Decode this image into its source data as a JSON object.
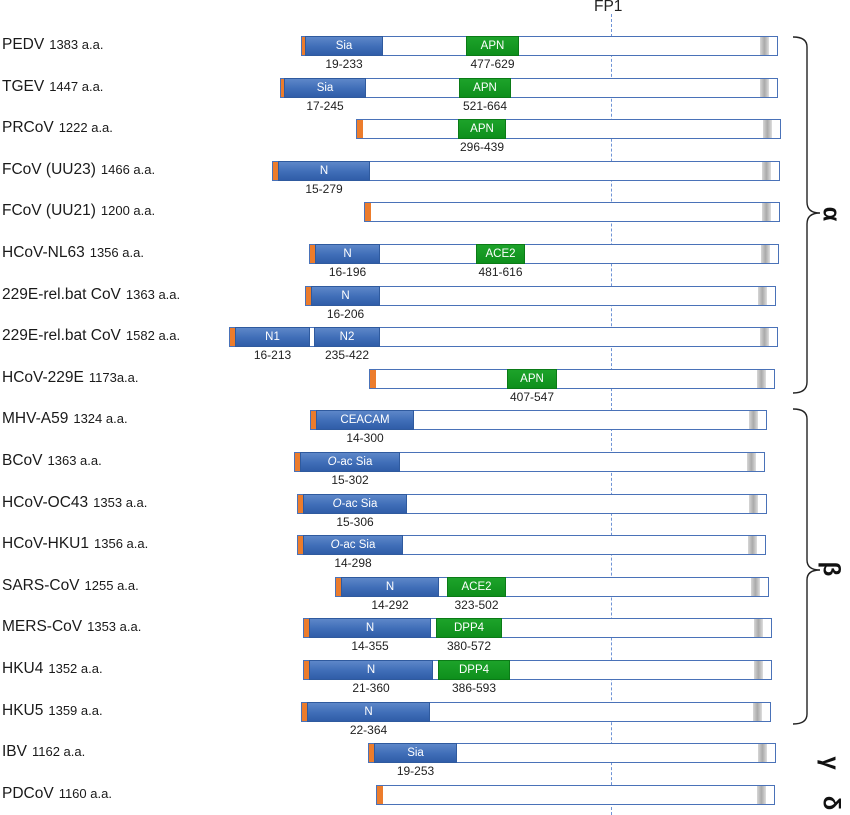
{
  "fp1_label": "FP1",
  "colors": {
    "bar_border": "#4a72b8",
    "signal_peptide": "#ec7c2c",
    "domain_blue": "#3f6db7",
    "domain_green": "#0e8f1c",
    "fp_line": "#6f93d6"
  },
  "groups": [
    {
      "symbol": "α"
    },
    {
      "symbol": "β"
    },
    {
      "symbol": "γ"
    },
    {
      "symbol": "δ"
    }
  ],
  "proteins": [
    {
      "name": "PEDV",
      "length": "1383 a.a.",
      "domains": [
        {
          "label": "Sia",
          "range": "19-233",
          "color": "blue"
        },
        {
          "label": "APN",
          "range": "477-629",
          "color": "green"
        }
      ]
    },
    {
      "name": "TGEV",
      "length": "1447 a.a.",
      "domains": [
        {
          "label": "Sia",
          "range": "17-245",
          "color": "blue"
        },
        {
          "label": "APN",
          "range": "521-664",
          "color": "green"
        }
      ]
    },
    {
      "name": "PRCoV",
      "length": "1222 a.a.",
      "domains": [
        {
          "label": "APN",
          "range": "296-439",
          "color": "green"
        }
      ]
    },
    {
      "name": "FCoV (UU23)",
      "length": "1466 a.a.",
      "domains": [
        {
          "label": "N",
          "range": "15-279",
          "color": "blue"
        }
      ]
    },
    {
      "name": "FCoV (UU21)",
      "length": "1200 a.a.",
      "domains": []
    },
    {
      "name": "HCoV-NL63",
      "length": "1356 a.a.",
      "domains": [
        {
          "label": "N",
          "range": "16-196",
          "color": "blue"
        },
        {
          "label": "ACE2",
          "range": "481-616",
          "color": "green"
        }
      ]
    },
    {
      "name": "229E-rel.bat CoV",
      "length": "1363 a.a.",
      "domains": [
        {
          "label": "N",
          "range": "16-206",
          "color": "blue"
        }
      ]
    },
    {
      "name": "229E-rel.bat CoV",
      "length": "1582 a.a.",
      "domains": [
        {
          "label": "N1",
          "range": "16-213",
          "color": "blue"
        },
        {
          "label": "N2",
          "range": "235-422",
          "color": "blue"
        }
      ]
    },
    {
      "name": "HCoV-229E",
      "length": "1173a.a.",
      "domains": [
        {
          "label": "APN",
          "range": "407-547",
          "color": "green"
        }
      ]
    },
    {
      "name": "MHV-A59",
      "length": "1324 a.a.",
      "domains": [
        {
          "label": "CEACAM",
          "range": "14-300",
          "color": "blue"
        }
      ]
    },
    {
      "name": "BCoV",
      "length": "1363 a.a.",
      "domains": [
        {
          "label": "O-ac Sia",
          "range": "15-302",
          "color": "blue"
        }
      ]
    },
    {
      "name": "HCoV-OC43",
      "length": "1353 a.a.",
      "domains": [
        {
          "label": "O-ac Sia",
          "range": "15-306",
          "color": "blue"
        }
      ]
    },
    {
      "name": "HCoV-HKU1",
      "length": "1356 a.a.",
      "domains": [
        {
          "label": "O-ac Sia",
          "range": "14-298",
          "color": "blue"
        }
      ]
    },
    {
      "name": "SARS-CoV",
      "length": "1255 a.a.",
      "domains": [
        {
          "label": "N",
          "range": "14-292",
          "color": "blue"
        },
        {
          "label": "ACE2",
          "range": "323-502",
          "color": "green"
        }
      ]
    },
    {
      "name": "MERS-CoV",
      "length": "1353 a.a.",
      "domains": [
        {
          "label": "N",
          "range": "14-355",
          "color": "blue"
        },
        {
          "label": "DPP4",
          "range": "380-572",
          "color": "green"
        }
      ]
    },
    {
      "name": "HKU4",
      "length": "1352 a.a.",
      "domains": [
        {
          "label": "N",
          "range": "21-360",
          "color": "blue"
        },
        {
          "label": "DPP4",
          "range": "386-593",
          "color": "green"
        }
      ]
    },
    {
      "name": "HKU5",
      "length": "1359 a.a.",
      "domains": [
        {
          "label": "N",
          "range": "22-364",
          "color": "blue"
        }
      ]
    },
    {
      "name": "IBV",
      "length": "1162 a.a.",
      "domains": [
        {
          "label": "Sia",
          "range": "19-253",
          "color": "blue"
        }
      ]
    },
    {
      "name": "PDCoV",
      "length": "1160 a.a.",
      "domains": []
    }
  ]
}
